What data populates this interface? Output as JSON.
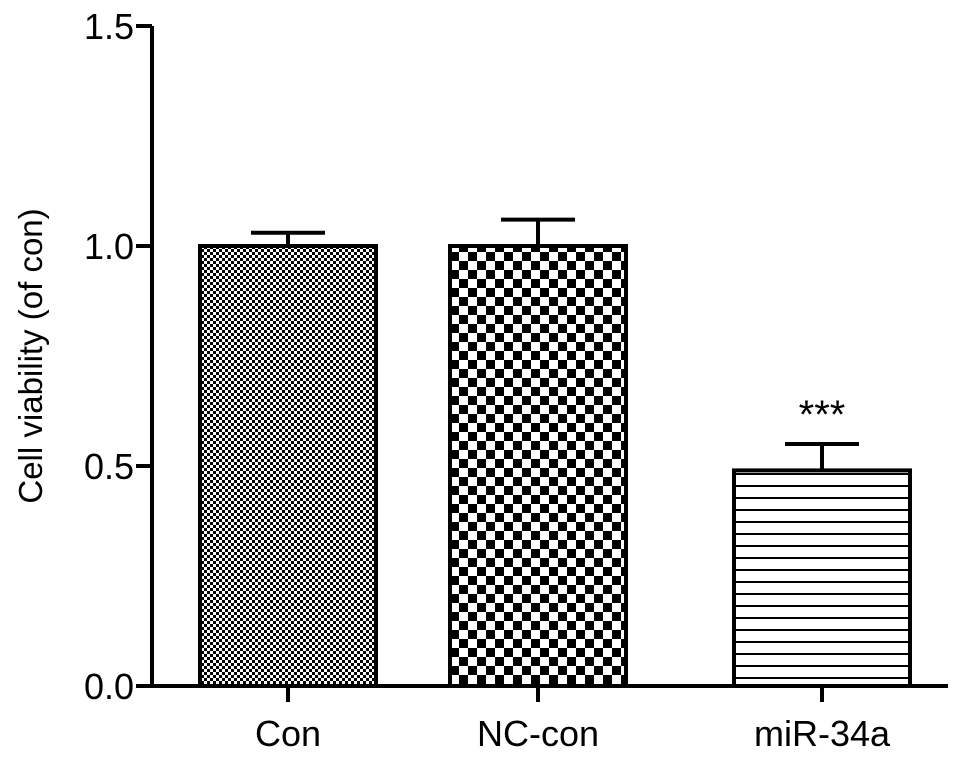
{
  "chart_data": {
    "type": "bar",
    "title": "",
    "xlabel": "",
    "ylabel": "Cell viability (of con)",
    "ylim": [
      0,
      1.5
    ],
    "yticks": [
      0.0,
      0.5,
      1.0,
      1.5
    ],
    "ytick_labels": [
      "0.0",
      "0.5",
      "1.0",
      "1.5"
    ],
    "categories": [
      "Con",
      "NC-con",
      "miR-34a"
    ],
    "values": [
      1.0,
      1.0,
      0.49
    ],
    "errors": [
      0.03,
      0.06,
      0.06
    ],
    "annotations": [
      "",
      "",
      "***"
    ],
    "fill_patterns": [
      "fine-check",
      "coarse-check",
      "horizontal-lines"
    ],
    "colors": {
      "bar_ink": "#000000",
      "bar_paper": "#ffffff",
      "axis": "#000000"
    },
    "grid": false,
    "legend": "none"
  }
}
